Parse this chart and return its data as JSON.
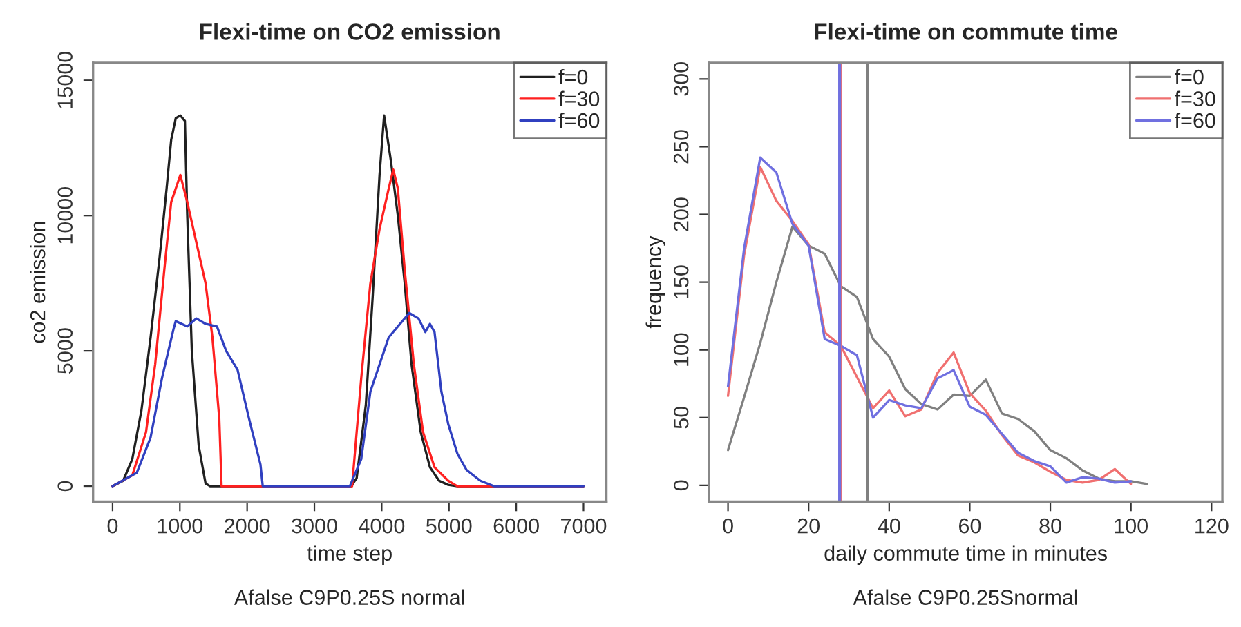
{
  "chart_data": [
    {
      "type": "line",
      "title": "Flexi-time on CO2 emission",
      "xlabel": "time step",
      "ylabel": "co2 emission",
      "annotations": [
        "Afalse C9P0.25S normal"
      ],
      "xlim": [
        -290,
        7340
      ],
      "ylim": [
        -570,
        15650
      ],
      "xticks": [
        0,
        1000,
        2000,
        3000,
        4000,
        5000,
        6000,
        7000
      ],
      "yticks": [
        0,
        5000,
        10000,
        15000
      ],
      "grid": false,
      "legend": "top right",
      "series": [
        {
          "name": "f=0",
          "color": "#202020",
          "x": [
            0,
            157,
            293,
            429,
            565,
            701,
            803,
            871,
            939,
            1007,
            1075,
            1110,
            1178,
            1280,
            1382,
            1450,
            3547,
            3628,
            3764,
            3866,
            3968,
            4036,
            4138,
            4240,
            4342,
            4444,
            4580,
            4717,
            4853,
            4989,
            5125,
            7000
          ],
          "values": [
            0,
            200,
            1000,
            2800,
            5500,
            8500,
            11000,
            12800,
            13600,
            13700,
            13500,
            10000,
            5000,
            1500,
            100,
            0,
            0,
            300,
            3000,
            7000,
            11500,
            13700,
            12000,
            10000,
            7500,
            4500,
            2000,
            700,
            200,
            50,
            0,
            0
          ]
        },
        {
          "name": "f=30",
          "color": "#ff2020",
          "x": [
            0,
            293,
            497,
            633,
            769,
            871,
            1007,
            1110,
            1246,
            1382,
            1484,
            1586,
            1620,
            3560,
            3696,
            3832,
            3968,
            4104,
            4172,
            4240,
            4342,
            4478,
            4615,
            4785,
            4989,
            5125,
            7000
          ],
          "values": [
            0,
            400,
            2000,
            4500,
            8000,
            10500,
            11500,
            10500,
            9000,
            7500,
            5500,
            2500,
            0,
            0,
            4000,
            7500,
            9500,
            11000,
            11700,
            11000,
            8000,
            4500,
            2000,
            700,
            200,
            0,
            0
          ]
        },
        {
          "name": "f=60",
          "color": "#3040c0",
          "x": [
            0,
            361,
            565,
            735,
            905,
            939,
            1110,
            1246,
            1382,
            1552,
            1688,
            1858,
            2028,
            2198,
            2232,
            3526,
            3696,
            3832,
            3968,
            4104,
            4274,
            4410,
            4546,
            4649,
            4717,
            4785,
            4887,
            4989,
            5125,
            5261,
            5466,
            5670,
            7000
          ],
          "values": [
            0,
            500,
            1800,
            4000,
            5800,
            6100,
            5900,
            6200,
            6000,
            5900,
            5000,
            4300,
            2500,
            800,
            0,
            0,
            1000,
            3500,
            4500,
            5500,
            6000,
            6400,
            6200,
            5700,
            6000,
            5700,
            3500,
            2300,
            1200,
            600,
            200,
            0,
            0
          ]
        }
      ]
    },
    {
      "type": "line",
      "title": "Flexi-time on commute time",
      "xlabel": "daily commute time in minutes",
      "ylabel": "frequency",
      "annotations": [
        "Afalse C9P0.25Snormal"
      ],
      "xlim": [
        -4.7,
        122.7
      ],
      "ylim": [
        -12,
        312
      ],
      "xticks": [
        0,
        20,
        40,
        60,
        80,
        100,
        120
      ],
      "yticks": [
        0,
        50,
        100,
        150,
        200,
        250,
        300
      ],
      "grid": false,
      "legend": "top right",
      "ref_lines": [
        {
          "axis": "x",
          "value": 34.7,
          "color": "#808080"
        },
        {
          "axis": "x",
          "value": 28,
          "color": "#f07070"
        },
        {
          "axis": "x",
          "value": 27.7,
          "color": "#7070e0"
        }
      ],
      "series": [
        {
          "name": "f=0",
          "color": "#808080",
          "x": [
            0,
            4,
            8,
            12,
            16,
            20,
            24,
            28,
            32,
            36,
            40,
            44,
            48,
            52,
            56,
            60,
            64,
            68,
            72,
            76,
            80,
            84,
            88,
            92,
            96,
            100,
            104
          ],
          "values": [
            26,
            65,
            105,
            150,
            191,
            177,
            171,
            147,
            139,
            108,
            95,
            71,
            60,
            56,
            67,
            66,
            78,
            53,
            49,
            40,
            26,
            20,
            11,
            5,
            3,
            3,
            1
          ]
        },
        {
          "name": "f=30",
          "color": "#f07070",
          "x": [
            0,
            4,
            8,
            12,
            16,
            20,
            24,
            28,
            32,
            36,
            40,
            44,
            48,
            52,
            56,
            60,
            64,
            68,
            72,
            76,
            80,
            84,
            88,
            92,
            96,
            100
          ],
          "values": [
            66,
            170,
            235,
            210,
            195,
            178,
            113,
            103,
            80,
            57,
            70,
            51,
            56,
            83,
            98,
            68,
            55,
            37,
            22,
            17,
            10,
            4,
            2,
            4,
            12,
            1
          ]
        },
        {
          "name": "f=60",
          "color": "#7070e0",
          "x": [
            0,
            4,
            8,
            12,
            16,
            20,
            24,
            28,
            32,
            36,
            40,
            44,
            48,
            52,
            56,
            60,
            64,
            68,
            72,
            76,
            80,
            84,
            88,
            92,
            96,
            100
          ],
          "values": [
            73,
            175,
            242,
            231,
            193,
            177,
            108,
            103,
            96,
            50,
            63,
            59,
            57,
            79,
            85,
            58,
            52,
            38,
            24,
            18,
            14,
            2,
            6,
            5,
            2,
            3
          ]
        }
      ]
    }
  ]
}
